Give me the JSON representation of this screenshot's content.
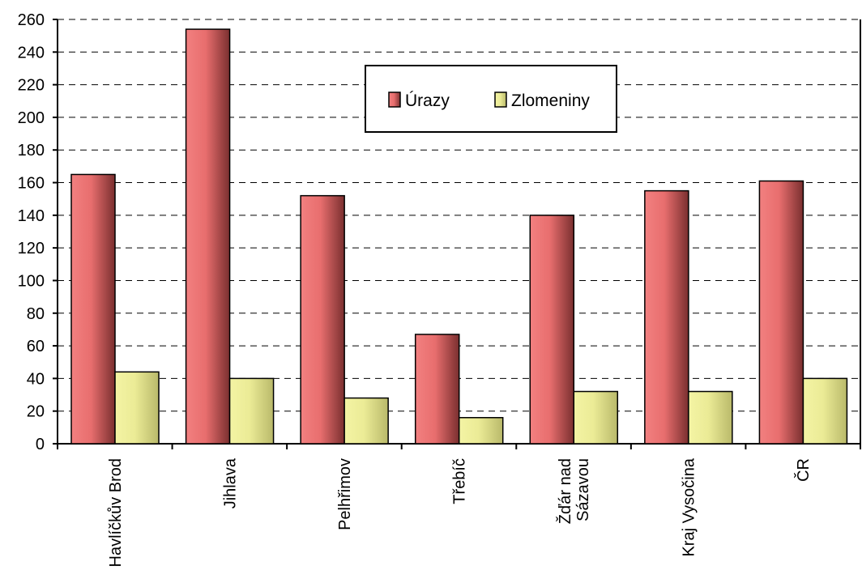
{
  "chart_data": {
    "type": "bar",
    "categories": [
      [
        "Havlíčkův Brod"
      ],
      [
        "Jihlava"
      ],
      [
        "Pelhřimov"
      ],
      [
        "Třebíč"
      ],
      [
        "Žďár nad",
        "Sázavou"
      ],
      [
        "Kraj Vysočina"
      ],
      [
        "ČR"
      ]
    ],
    "series": [
      {
        "name": "Úrazy",
        "values": [
          165,
          254,
          152,
          67,
          140,
          155,
          161
        ],
        "color": "#e06666"
      },
      {
        "name": "Zlomeniny",
        "values": [
          44,
          40,
          28,
          16,
          32,
          32,
          40
        ],
        "color": "#eded99"
      }
    ],
    "ylim": [
      0,
      260
    ],
    "yticks": [
      0,
      20,
      40,
      60,
      80,
      100,
      120,
      140,
      160,
      180,
      200,
      220,
      240,
      260
    ],
    "grid": true,
    "grid_style": "dashed",
    "legend": {
      "position": "top-center"
    },
    "title": "",
    "xlabel": "",
    "ylabel": ""
  }
}
